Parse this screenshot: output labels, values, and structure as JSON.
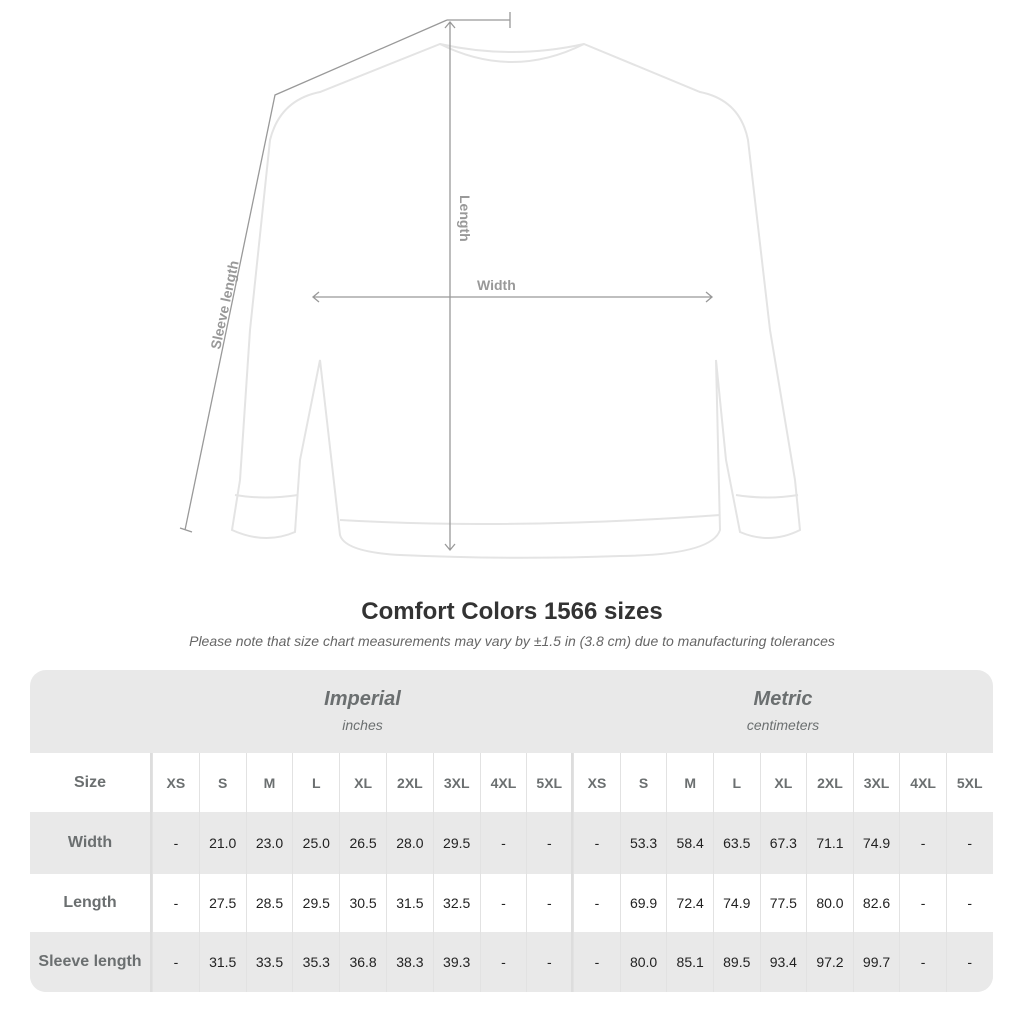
{
  "diagram": {
    "labels": {
      "sleeve": "Sleeve length",
      "length": "Length",
      "width": "Width"
    }
  },
  "title": "Comfort Colors 1566 sizes",
  "subtitle": "Please note that size chart measurements may vary by ±1.5 in (3.8 cm) due to manufacturing tolerances",
  "table": {
    "imperial": {
      "label": "Imperial",
      "unit": "inches"
    },
    "metric": {
      "label": "Metric",
      "unit": "centimeters"
    },
    "size_label": "Size",
    "sizes": [
      "XS",
      "S",
      "M",
      "L",
      "XL",
      "2XL",
      "3XL",
      "4XL",
      "5XL"
    ],
    "rows": [
      {
        "label": "Width",
        "imperial": [
          "-",
          "21.0",
          "23.0",
          "25.0",
          "26.5",
          "28.0",
          "29.5",
          "-",
          "-"
        ],
        "metric": [
          "-",
          "53.3",
          "58.4",
          "63.5",
          "67.3",
          "71.1",
          "74.9",
          "-",
          "-"
        ]
      },
      {
        "label": "Length",
        "imperial": [
          "-",
          "27.5",
          "28.5",
          "29.5",
          "30.5",
          "31.5",
          "32.5",
          "-",
          "-"
        ],
        "metric": [
          "-",
          "69.9",
          "72.4",
          "74.9",
          "77.5",
          "80.0",
          "82.6",
          "-",
          "-"
        ]
      },
      {
        "label": "Sleeve length",
        "imperial": [
          "-",
          "31.5",
          "33.5",
          "35.3",
          "36.8",
          "38.3",
          "39.3",
          "-",
          "-"
        ],
        "metric": [
          "-",
          "80.0",
          "85.1",
          "89.5",
          "93.4",
          "97.2",
          "99.7",
          "-",
          "-"
        ]
      }
    ]
  }
}
